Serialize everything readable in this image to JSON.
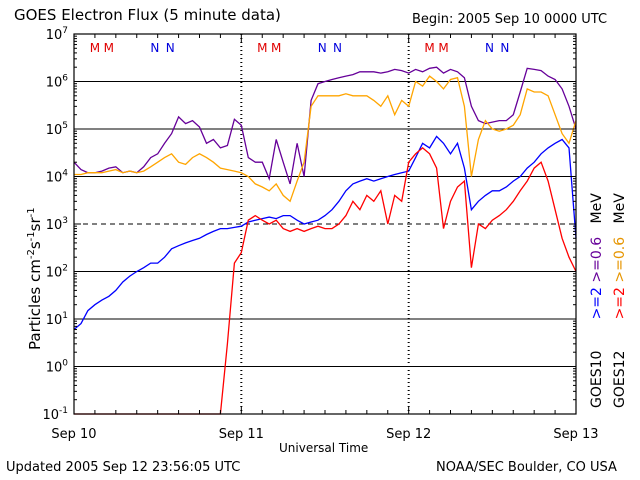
{
  "header": {
    "title": "GOES Electron Flux (5 minute data)",
    "begin": "Begin: 2005 Sep 10 0000 UTC"
  },
  "footer": {
    "updated": "Updated 2005 Sep 12 23:56:05 UTC",
    "credit": "NOAA/SEC Boulder, CO USA"
  },
  "colors": {
    "goes10_lt2": "#0000ff",
    "goes12_lt2": "#ff0000",
    "goes10_lt06": "#660099",
    "goes12_lt06": "#ffa500",
    "mark_m": "#e00000",
    "mark_n": "#0000dd"
  },
  "chart_data": {
    "type": "line",
    "title": "GOES Electron Flux (5 minute data)",
    "xlabel": "Universal Time",
    "ylabel": "Particles cm^-2 s^-1 sr^-1",
    "xlim": [
      0,
      72
    ],
    "ylim": [
      0.1,
      10000000
    ],
    "yscale": "log",
    "x_ticks": [
      {
        "hour": 0,
        "label": "Sep 10"
      },
      {
        "hour": 24,
        "label": "Sep 11"
      },
      {
        "hour": 48,
        "label": "Sep 12"
      },
      {
        "hour": 72,
        "label": "Sep 13"
      }
    ],
    "y_ticks": [
      {
        "base": "10",
        "exp": "-1"
      },
      {
        "base": "10",
        "exp": "0"
      },
      {
        "base": "10",
        "exp": "1"
      },
      {
        "base": "10",
        "exp": "2"
      },
      {
        "base": "10",
        "exp": "3"
      },
      {
        "base": "10",
        "exp": "4"
      },
      {
        "base": "10",
        "exp": "5"
      },
      {
        "base": "10",
        "exp": "6"
      },
      {
        "base": "10",
        "exp": "7"
      }
    ],
    "threshold": 1000,
    "markers": [
      {
        "hour": 3.0,
        "label": "M"
      },
      {
        "hour": 5.0,
        "label": "M"
      },
      {
        "hour": 11.6,
        "label": "N"
      },
      {
        "hour": 13.8,
        "label": "N"
      },
      {
        "hour": 27.0,
        "label": "M"
      },
      {
        "hour": 29.0,
        "label": "M"
      },
      {
        "hour": 35.6,
        "label": "N"
      },
      {
        "hour": 37.8,
        "label": "N"
      },
      {
        "hour": 51.0,
        "label": "M"
      },
      {
        "hour": 53.0,
        "label": "M"
      },
      {
        "hour": 59.6,
        "label": "N"
      },
      {
        "hour": 61.8,
        "label": "N"
      }
    ],
    "series": [
      {
        "name": "GOES10 >=0.6 MeV",
        "color": "#660099",
        "x": [
          0,
          1,
          2,
          3,
          4,
          5,
          6,
          7,
          8,
          9,
          10,
          11,
          12,
          13,
          14,
          15,
          16,
          17,
          18,
          19,
          20,
          21,
          22,
          23,
          24,
          25,
          26,
          27,
          28,
          29,
          30,
          31,
          32,
          33,
          34,
          35,
          36,
          37,
          38,
          39,
          40,
          41,
          42,
          43,
          44,
          45,
          46,
          47,
          48,
          49,
          50,
          51,
          52,
          53,
          54,
          55,
          56,
          57,
          58,
          59,
          60,
          61,
          62,
          63,
          64,
          65,
          66,
          67,
          68,
          69,
          70,
          71,
          72
        ],
        "y": [
          20000,
          14000,
          12000,
          12000,
          13000,
          15000,
          16000,
          12000,
          13000,
          12000,
          16000,
          25000,
          30000,
          50000,
          80000,
          180000,
          130000,
          150000,
          110000,
          50000,
          60000,
          40000,
          45000,
          160000,
          120000,
          25000,
          20000,
          20000,
          9000,
          60000,
          20000,
          7000,
          50000,
          10000,
          400000,
          900000,
          1000000,
          1100000,
          1200000,
          1300000,
          1400000,
          1600000,
          1600000,
          1600000,
          1500000,
          1600000,
          1800000,
          1700000,
          1500000,
          1800000,
          1600000,
          1900000,
          2000000,
          1500000,
          1800000,
          1600000,
          1200000,
          300000,
          150000,
          130000,
          140000,
          150000,
          150000,
          200000,
          600000,
          1900000,
          1800000,
          1700000,
          1300000,
          1100000,
          700000,
          300000,
          100000
        ]
      },
      {
        "name": "GOES12 >=0.6 MeV",
        "color": "#ffa500",
        "x": [
          0,
          1,
          2,
          3,
          4,
          5,
          6,
          7,
          8,
          9,
          10,
          11,
          12,
          13,
          14,
          15,
          16,
          17,
          18,
          19,
          20,
          21,
          22,
          23,
          24,
          25,
          26,
          27,
          28,
          29,
          30,
          31,
          32,
          33,
          34,
          35,
          36,
          37,
          38,
          39,
          40,
          41,
          42,
          43,
          44,
          45,
          46,
          47,
          48,
          49,
          50,
          51,
          52,
          53,
          54,
          55,
          56,
          57,
          58,
          59,
          60,
          61,
          62,
          63,
          64,
          65,
          66,
          67,
          68,
          69,
          70,
          71,
          72
        ],
        "y": [
          11000,
          11000,
          12000,
          12000,
          12000,
          13000,
          14000,
          12000,
          13000,
          12000,
          13000,
          16000,
          20000,
          25000,
          30000,
          20000,
          18000,
          25000,
          30000,
          25000,
          20000,
          15000,
          14000,
          13000,
          12000,
          10000,
          7000,
          6000,
          5000,
          7000,
          4000,
          3000,
          8000,
          20000,
          300000,
          500000,
          500000,
          500000,
          500000,
          550000,
          500000,
          500000,
          500000,
          400000,
          300000,
          500000,
          200000,
          400000,
          300000,
          1000000,
          800000,
          1300000,
          1000000,
          700000,
          1100000,
          1200000,
          300000,
          10000,
          60000,
          150000,
          100000,
          90000,
          100000,
          120000,
          200000,
          700000,
          600000,
          600000,
          500000,
          200000,
          80000,
          50000,
          150000
        ]
      },
      {
        "name": "GOES10 >=2 MeV",
        "color": "#0000ff",
        "x": [
          0,
          1,
          2,
          3,
          4,
          5,
          6,
          7,
          8,
          9,
          10,
          11,
          12,
          13,
          14,
          15,
          16,
          17,
          18,
          19,
          20,
          21,
          22,
          23,
          24,
          25,
          26,
          27,
          28,
          29,
          30,
          31,
          32,
          33,
          34,
          35,
          36,
          37,
          38,
          39,
          40,
          41,
          42,
          43,
          44,
          45,
          46,
          47,
          48,
          49,
          50,
          51,
          52,
          53,
          54,
          55,
          56,
          57,
          58,
          59,
          60,
          61,
          62,
          63,
          64,
          65,
          66,
          67,
          68,
          69,
          70,
          71,
          72
        ],
        "y": [
          6,
          8,
          15,
          20,
          25,
          30,
          40,
          60,
          80,
          100,
          120,
          150,
          150,
          200,
          300,
          350,
          400,
          450,
          500,
          600,
          700,
          800,
          800,
          850,
          900,
          1100,
          1200,
          1300,
          1400,
          1300,
          1500,
          1500,
          1200,
          1000,
          1100,
          1200,
          1500,
          2000,
          3000,
          5000,
          7000,
          8000,
          9000,
          8000,
          9000,
          10000,
          11000,
          12000,
          13000,
          25000,
          50000,
          40000,
          70000,
          50000,
          30000,
          50000,
          15000,
          2000,
          3000,
          4000,
          5000,
          5000,
          6000,
          8000,
          10000,
          15000,
          20000,
          30000,
          40000,
          50000,
          60000,
          40000,
          500
        ]
      },
      {
        "name": "GOES12 >=2 MeV",
        "color": "#ff0000",
        "x": [
          0,
          1,
          2,
          3,
          4,
          5,
          6,
          7,
          8,
          9,
          10,
          11,
          12,
          13,
          14,
          15,
          16,
          17,
          18,
          19,
          20,
          21,
          22,
          23,
          24,
          25,
          26,
          27,
          28,
          29,
          30,
          31,
          32,
          33,
          34,
          35,
          36,
          37,
          38,
          39,
          40,
          41,
          42,
          43,
          44,
          45,
          46,
          47,
          48,
          49,
          50,
          51,
          52,
          53,
          54,
          55,
          56,
          57,
          58,
          59,
          60,
          61,
          62,
          63,
          64,
          65,
          66,
          67,
          68,
          69,
          70,
          71,
          72
        ],
        "y": [
          0.1,
          0.1,
          0.1,
          0.1,
          0.1,
          0.1,
          0.1,
          0.1,
          0.1,
          0.1,
          0.1,
          0.1,
          0.1,
          0.1,
          0.1,
          0.1,
          0.1,
          0.1,
          0.1,
          0.1,
          0.1,
          0.1,
          3,
          150,
          250,
          1200,
          1500,
          1200,
          1000,
          1200,
          800,
          700,
          800,
          700,
          800,
          900,
          800,
          800,
          1000,
          1500,
          3000,
          2000,
          4000,
          3000,
          5000,
          1000,
          4000,
          3000,
          20000,
          30000,
          40000,
          30000,
          15000,
          800,
          3000,
          6000,
          8000,
          120,
          1000,
          800,
          1200,
          1500,
          2000,
          3000,
          5000,
          8000,
          15000,
          20000,
          8000,
          2000,
          500,
          200,
          100
        ]
      }
    ],
    "right_legend": [
      {
        "text": "GOES10",
        "color": "#000000"
      },
      {
        "text": ">=2",
        "color": "#0000ff"
      },
      {
        "text": ">=0.6",
        "color": "#660099"
      },
      {
        "text": "MeV",
        "color": "#000000"
      },
      {
        "text": "GOES12",
        "color": "#000000"
      },
      {
        "text": ">=2",
        "color": "#ff0000"
      },
      {
        "text": ">=0.6",
        "color": "#ffa500"
      },
      {
        "text": "MeV",
        "color": "#000000"
      }
    ]
  }
}
